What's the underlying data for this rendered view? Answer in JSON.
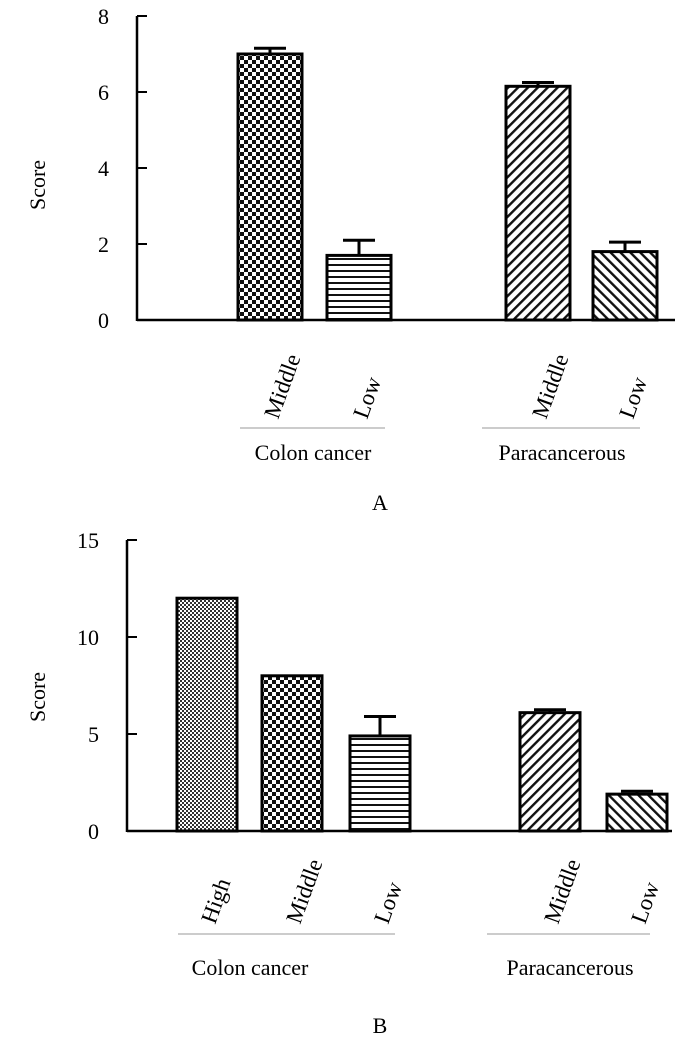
{
  "chart_data": [
    {
      "type": "bar",
      "panel": "A",
      "ylabel": "Score",
      "ylim": [
        0,
        8
      ],
      "yticks": [
        0,
        2,
        4,
        6,
        8
      ],
      "groups": [
        {
          "name": "Colon cancer",
          "bars": [
            {
              "label": "Middle",
              "value": 7.0,
              "error": 0.15,
              "pattern": "checker"
            },
            {
              "label": "Low",
              "value": 1.7,
              "error": 0.4,
              "pattern": "hstripes"
            }
          ]
        },
        {
          "name": "Paracancerous",
          "bars": [
            {
              "label": "Middle",
              "value": 6.15,
              "error": 0.1,
              "pattern": "diag"
            },
            {
              "label": "Low",
              "value": 1.8,
              "error": 0.25,
              "pattern": "diagrev"
            }
          ]
        }
      ]
    },
    {
      "type": "bar",
      "panel": "B",
      "ylabel": "Score",
      "ylim": [
        0,
        15
      ],
      "yticks": [
        0,
        5,
        10,
        15
      ],
      "groups": [
        {
          "name": "Colon cancer",
          "bars": [
            {
              "label": "High",
              "value": 12.0,
              "error": 0,
              "pattern": "finechecker"
            },
            {
              "label": "Middle",
              "value": 8.0,
              "error": 0,
              "pattern": "checker"
            },
            {
              "label": "Low",
              "value": 4.9,
              "error": 1.0,
              "pattern": "hstripes"
            }
          ]
        },
        {
          "name": "Paracancerous",
          "bars": [
            {
              "label": "Middle",
              "value": 6.1,
              "error": 0.15,
              "pattern": "diag"
            },
            {
              "label": "Low",
              "value": 1.9,
              "error": 0.15,
              "pattern": "diagrev"
            }
          ]
        }
      ]
    }
  ]
}
